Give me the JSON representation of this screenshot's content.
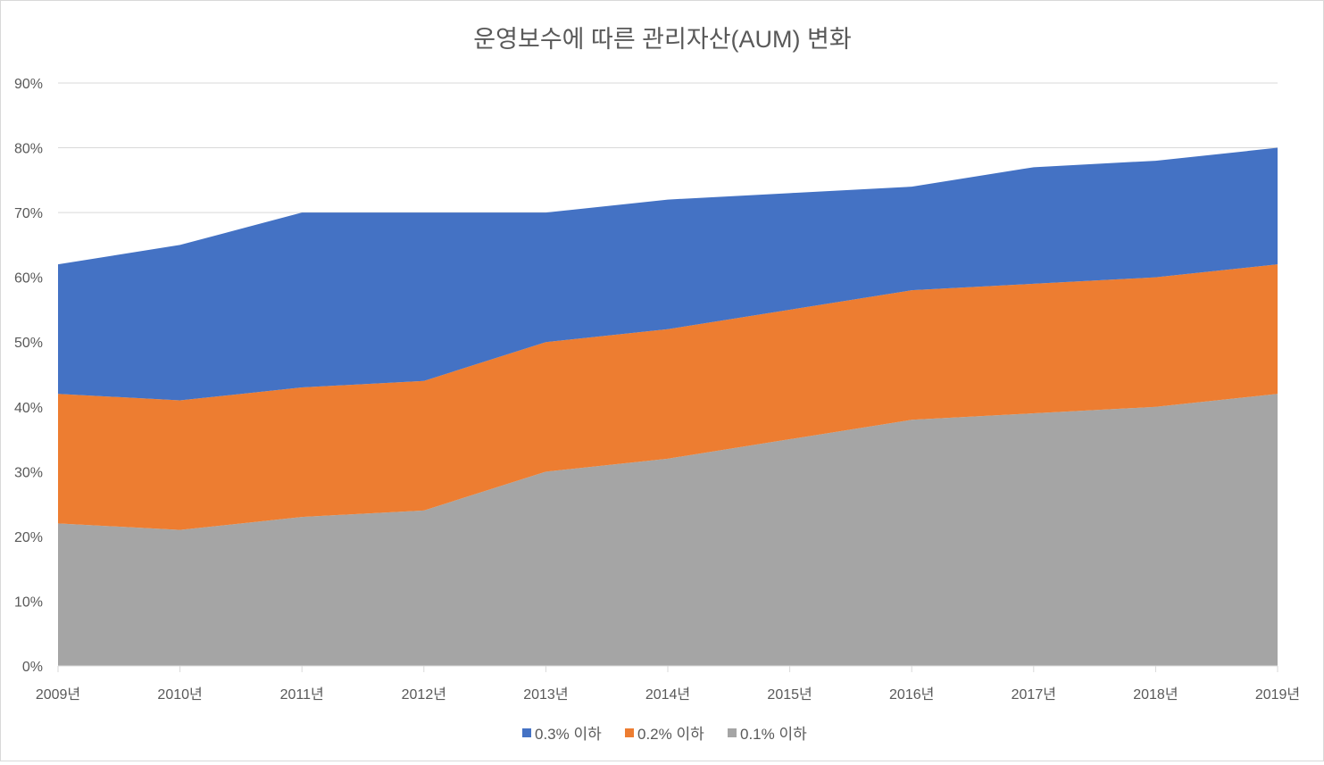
{
  "chart_data": {
    "type": "area",
    "stacked": true,
    "title": "운영보수에 따른 관리자산(AUM) 변화",
    "x": [
      "2009년",
      "2010년",
      "2011년",
      "2012년",
      "2013년",
      "2014년",
      "2015년",
      "2016년",
      "2017년",
      "2018년",
      "2019년"
    ],
    "y_ticks": [
      "0%",
      "10%",
      "20%",
      "30%",
      "40%",
      "50%",
      "60%",
      "70%",
      "80%",
      "90%"
    ],
    "ylim": [
      0,
      90
    ],
    "grid": true,
    "legend_position": "bottom",
    "series": [
      {
        "name": "0.1% 이하",
        "color": "#a5a5a5",
        "values": [
          22,
          21,
          23,
          24,
          30,
          32,
          35,
          38,
          39,
          40,
          42
        ]
      },
      {
        "name": "0.2% 이하",
        "color": "#ed7d31",
        "values": [
          20,
          20,
          20,
          20,
          20,
          20,
          20,
          20,
          20,
          20,
          20
        ]
      },
      {
        "name": "0.3% 이하",
        "color": "#4472c4",
        "values": [
          20,
          24,
          27,
          26,
          20,
          20,
          18,
          16,
          18,
          18,
          18
        ]
      }
    ],
    "legend_order": [
      "0.3% 이하",
      "0.2% 이하",
      "0.1% 이하"
    ]
  }
}
